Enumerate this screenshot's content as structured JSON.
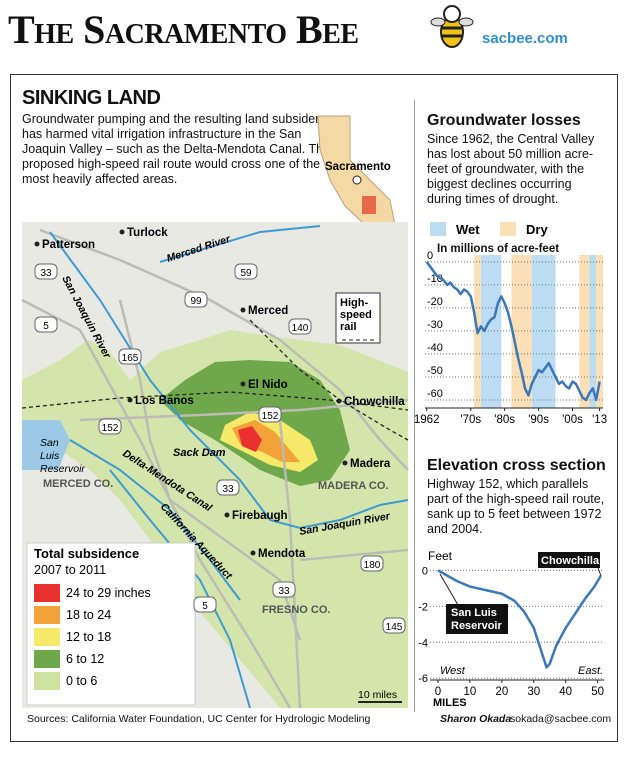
{
  "header": {
    "masthead": "The Sacramento Bee",
    "site": "sacbee.com"
  },
  "story": {
    "title": "SINKING LAND",
    "description": "Groundwater pumping and the resulting land subsidence has harmed vital irrigation infrastructure in the San Joaquin Valley – such as the Delta-Mendota Canal. The proposed high-speed rail route would cross one of the most heavily affected areas.",
    "sources": "Sources: California Water Foundation, UC Center for Hydrologic Modeling",
    "credit_name": "Sharon Okada",
    "credit_email": "sokada@sacbee.com"
  },
  "map": {
    "inset_label": "Sacramento",
    "labels": [
      "Patterson",
      "Turlock",
      "Merced River",
      "59",
      "33",
      "San Joaquin River",
      "5",
      "99",
      "Merced",
      "140",
      "165",
      "Los Banos",
      "El Nido",
      "Chowchilla",
      "152",
      "152",
      "San Luis Reservoir",
      "Sack Dam",
      "Delta-Mendota Canal",
      "MERCED CO.",
      "33",
      "Madera",
      "MADERA CO.",
      "Firebaugh",
      "San Joaquin River",
      "California Aqueduct",
      "Mendota",
      "180",
      "33",
      "FRESNO CO.",
      "5",
      "145"
    ],
    "rail_label": "High-speed rail",
    "scale": "10 miles",
    "legend": {
      "title": "Total subsidence",
      "subtitle": "2007 to 2011",
      "items": [
        {
          "label": "24 to 29 inches",
          "color": "#e8312f"
        },
        {
          "label": "18 to 24",
          "color": "#f3a23a"
        },
        {
          "label": "12 to 18",
          "color": "#f7ea6a"
        },
        {
          "label": "6 to 12",
          "color": "#6fa84a"
        },
        {
          "label": "0 to 6",
          "color": "#cfe3a0"
        }
      ]
    }
  },
  "chart_data": [
    {
      "type": "line",
      "title": "Groundwater losses",
      "description": "Since 1962, the Central Valley has lost about 50 million acre-feet of groundwater, with the biggest declines occurring during times of drought.",
      "y_label": "In millions of acre-feet",
      "bands": [
        {
          "name": "Wet",
          "color": "#bcdcf4",
          "ranges": [
            [
              1978,
              1983
            ],
            [
              1993,
              1999
            ],
            [
              2010,
              2011
            ]
          ]
        },
        {
          "name": "Dry",
          "color": "#fbdfb6",
          "ranges": [
            [
              1976,
              1977
            ],
            [
              1987,
              1992
            ],
            [
              2007,
              2009
            ],
            [
              2012,
              2013
            ]
          ]
        }
      ],
      "x": [
        1962,
        1963,
        1964,
        1965,
        1966,
        1967,
        1968,
        1969,
        1970,
        1971,
        1972,
        1973,
        1974,
        1975,
        1976,
        1977,
        1978,
        1979,
        1980,
        1981,
        1982,
        1983,
        1984,
        1985,
        1986,
        1987,
        1988,
        1989,
        1990,
        1991,
        1992,
        1993,
        1994,
        1995,
        1996,
        1997,
        1998,
        1999,
        2000,
        2001,
        2002,
        2003,
        2004,
        2005,
        2006,
        2007,
        2008,
        2009,
        2010,
        2011,
        2012,
        2013
      ],
      "series": [
        {
          "color": "#3b78b8",
          "values": [
            0,
            -2,
            -4,
            -6,
            -7,
            -8,
            -10,
            -9,
            -11,
            -12,
            -14,
            -12,
            -13,
            -15,
            -22,
            -31,
            -28,
            -30,
            -27,
            -25,
            -24,
            -18,
            -15,
            -18,
            -22,
            -28,
            -35,
            -42,
            -48,
            -55,
            -58,
            -53,
            -50,
            -47,
            -48,
            -46,
            -44,
            -47,
            -50,
            -53,
            -52,
            -54,
            -55,
            -52,
            -53,
            -56,
            -59,
            -60,
            -57,
            -55,
            -60,
            -52
          ]
        }
      ],
      "xlim": [
        1961.5,
        2014
      ],
      "xticks": [
        1962,
        {
          "value": 1975,
          "label": "'70s"
        },
        {
          "value": 1985,
          "label": "'80s"
        },
        {
          "value": 1995,
          "label": "'90s"
        },
        {
          "value": 2005,
          "label": "'00s"
        },
        {
          "value": 2013,
          "label": "'13"
        }
      ],
      "ylim": [
        -63.5,
        3
      ],
      "yticks": [
        0,
        -10,
        -20,
        -30,
        -40,
        -50,
        -60
      ],
      "grid": true
    },
    {
      "type": "line",
      "title": "Elevation cross section",
      "description": "Highway 152, which parallels part of the high-speed rail route, sank up to 5 feet between 1972 and 2004.",
      "y_label": "Feet",
      "x_label": "MILES",
      "annotations": [
        "San Luis Reservoir",
        "Chowchilla",
        "West",
        "East."
      ],
      "x": [
        0,
        3,
        6,
        10,
        15,
        20,
        24,
        27,
        30,
        32,
        34,
        35,
        37,
        40,
        43,
        46,
        49,
        51
      ],
      "series": [
        {
          "color": "#3b78b8",
          "values": [
            0,
            -0.3,
            -0.6,
            -0.9,
            -1.1,
            -1.3,
            -1.7,
            -2.3,
            -3.2,
            -4.3,
            -5.4,
            -5.2,
            -4.2,
            -3.2,
            -2.4,
            -1.6,
            -0.9,
            -0.3
          ]
        }
      ],
      "xlim": [
        -2.5,
        52
      ],
      "xticks": [
        0,
        10,
        20,
        30,
        40,
        50
      ],
      "ylim": [
        -6.1,
        0.8
      ],
      "yticks": [
        0,
        -2,
        -4,
        -6
      ],
      "grid": true
    }
  ]
}
